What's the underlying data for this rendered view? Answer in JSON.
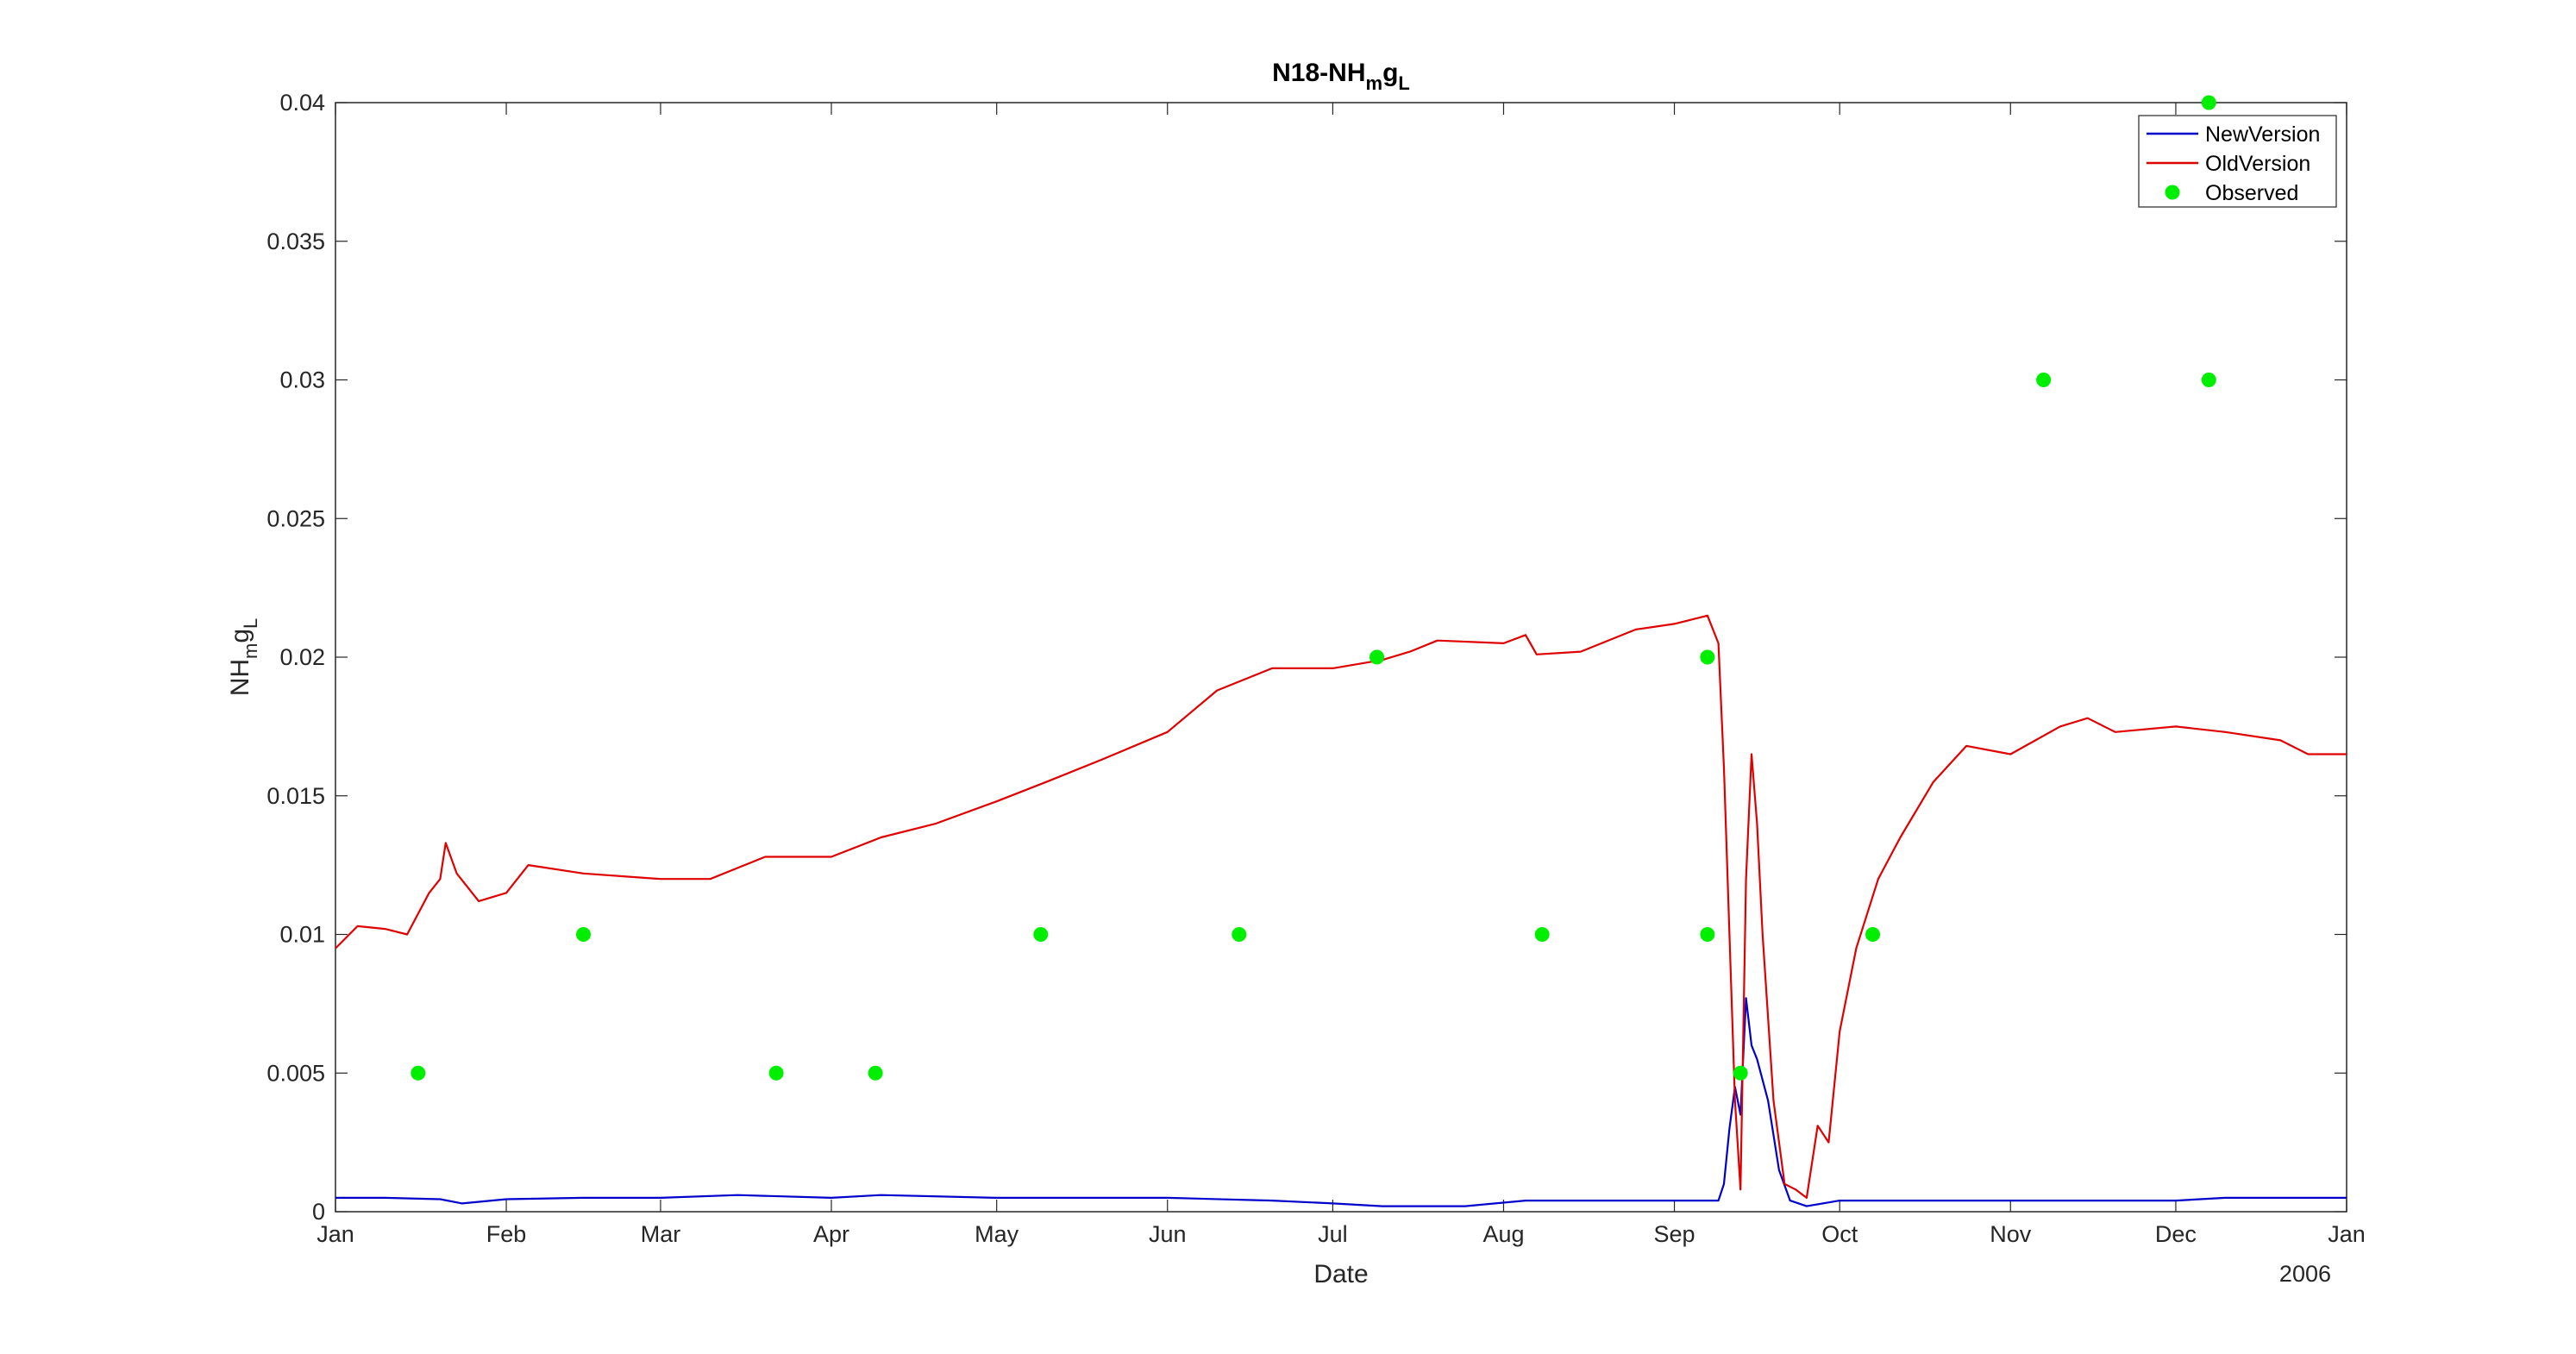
{
  "chart_data": {
    "type": "line",
    "title": "N18-NH",
    "title_sub": "m",
    "title_mid": "g",
    "title_sub2": "L",
    "xlabel": "Date",
    "ylabel": "NH",
    "ylabel_sub": "m",
    "ylabel_mid": "g",
    "ylabel_sub2": "L",
    "x_year_label": "2006",
    "xlim": [
      "2006-01-01",
      "2007-01-01"
    ],
    "ylim": [
      0,
      0.04
    ],
    "x_ticks": [
      {
        "date": "2006-01-01",
        "label": "Jan"
      },
      {
        "date": "2006-02-01",
        "label": "Feb"
      },
      {
        "date": "2006-03-01",
        "label": "Mar"
      },
      {
        "date": "2006-04-01",
        "label": "Apr"
      },
      {
        "date": "2006-05-01",
        "label": "May"
      },
      {
        "date": "2006-06-01",
        "label": "Jun"
      },
      {
        "date": "2006-07-01",
        "label": "Jul"
      },
      {
        "date": "2006-08-01",
        "label": "Aug"
      },
      {
        "date": "2006-09-01",
        "label": "Sep"
      },
      {
        "date": "2006-10-01",
        "label": "Oct"
      },
      {
        "date": "2006-11-01",
        "label": "Nov"
      },
      {
        "date": "2006-12-01",
        "label": "Dec"
      },
      {
        "date": "2007-01-01",
        "label": "Jan"
      }
    ],
    "y_ticks": [
      {
        "value": 0,
        "label": "0"
      },
      {
        "value": 0.005,
        "label": "0.005"
      },
      {
        "value": 0.01,
        "label": "0.01"
      },
      {
        "value": 0.015,
        "label": "0.015"
      },
      {
        "value": 0.02,
        "label": "0.02"
      },
      {
        "value": 0.025,
        "label": "0.025"
      },
      {
        "value": 0.03,
        "label": "0.03"
      },
      {
        "value": 0.035,
        "label": "0.035"
      },
      {
        "value": 0.04,
        "label": "0.04"
      }
    ],
    "grid": false,
    "legend_position": "top-right",
    "series": [
      {
        "name": "NewVersion",
        "color": "#0000cc",
        "kind": "line",
        "points": [
          [
            "2006-01-01",
            0.0005
          ],
          [
            "2006-01-10",
            0.0005
          ],
          [
            "2006-01-20",
            0.00045
          ],
          [
            "2006-01-24",
            0.0003
          ],
          [
            "2006-02-01",
            0.00045
          ],
          [
            "2006-02-15",
            0.0005
          ],
          [
            "2006-03-01",
            0.0005
          ],
          [
            "2006-03-15",
            0.0006
          ],
          [
            "2006-04-01",
            0.0005
          ],
          [
            "2006-04-10",
            0.0006
          ],
          [
            "2006-05-01",
            0.0005
          ],
          [
            "2006-06-01",
            0.0005
          ],
          [
            "2006-06-20",
            0.0004
          ],
          [
            "2006-07-01",
            0.0003
          ],
          [
            "2006-07-10",
            0.0002
          ],
          [
            "2006-07-25",
            0.0002
          ],
          [
            "2006-08-05",
            0.0004
          ],
          [
            "2006-08-20",
            0.0004
          ],
          [
            "2006-09-01",
            0.0004
          ],
          [
            "2006-09-09",
            0.0004
          ],
          [
            "2006-09-10",
            0.001
          ],
          [
            "2006-09-11",
            0.003
          ],
          [
            "2006-09-12",
            0.0045
          ],
          [
            "2006-09-13",
            0.0035
          ],
          [
            "2006-09-14",
            0.0077
          ],
          [
            "2006-09-15",
            0.006
          ],
          [
            "2006-09-16",
            0.0055
          ],
          [
            "2006-09-18",
            0.004
          ],
          [
            "2006-09-20",
            0.0015
          ],
          [
            "2006-09-22",
            0.0004
          ],
          [
            "2006-09-25",
            0.0002
          ],
          [
            "2006-10-01",
            0.0004
          ],
          [
            "2006-10-15",
            0.0004
          ],
          [
            "2006-11-01",
            0.0004
          ],
          [
            "2006-11-15",
            0.0004
          ],
          [
            "2006-12-01",
            0.0004
          ],
          [
            "2006-12-10",
            0.0005
          ],
          [
            "2006-12-20",
            0.0005
          ],
          [
            "2007-01-01",
            0.0005
          ]
        ]
      },
      {
        "name": "OldVersion",
        "color": "#e00000",
        "kind": "line",
        "points": [
          [
            "2006-01-01",
            0.0095
          ],
          [
            "2006-01-05",
            0.0103
          ],
          [
            "2006-01-10",
            0.0102
          ],
          [
            "2006-01-14",
            0.01
          ],
          [
            "2006-01-18",
            0.0115
          ],
          [
            "2006-01-20",
            0.012
          ],
          [
            "2006-01-21",
            0.0133
          ],
          [
            "2006-01-23",
            0.0122
          ],
          [
            "2006-01-27",
            0.0112
          ],
          [
            "2006-02-01",
            0.0115
          ],
          [
            "2006-02-05",
            0.0125
          ],
          [
            "2006-02-15",
            0.0122
          ],
          [
            "2006-03-01",
            0.012
          ],
          [
            "2006-03-10",
            0.012
          ],
          [
            "2006-03-20",
            0.0128
          ],
          [
            "2006-04-01",
            0.0128
          ],
          [
            "2006-04-10",
            0.0135
          ],
          [
            "2006-04-20",
            0.014
          ],
          [
            "2006-05-01",
            0.0148
          ],
          [
            "2006-05-10",
            0.0155
          ],
          [
            "2006-05-20",
            0.0163
          ],
          [
            "2006-06-01",
            0.0173
          ],
          [
            "2006-06-10",
            0.0188
          ],
          [
            "2006-06-20",
            0.0196
          ],
          [
            "2006-07-01",
            0.0196
          ],
          [
            "2006-07-10",
            0.0199
          ],
          [
            "2006-07-15",
            0.0202
          ],
          [
            "2006-07-20",
            0.0206
          ],
          [
            "2006-08-01",
            0.0205
          ],
          [
            "2006-08-05",
            0.0208
          ],
          [
            "2006-08-07",
            0.0201
          ],
          [
            "2006-08-15",
            0.0202
          ],
          [
            "2006-08-25",
            0.021
          ],
          [
            "2006-09-01",
            0.0212
          ],
          [
            "2006-09-07",
            0.0215
          ],
          [
            "2006-09-09",
            0.0205
          ],
          [
            "2006-09-10",
            0.016
          ],
          [
            "2006-09-11",
            0.01
          ],
          [
            "2006-09-12",
            0.004
          ],
          [
            "2006-09-13",
            0.0008
          ],
          [
            "2006-09-14",
            0.012
          ],
          [
            "2006-09-15",
            0.0165
          ],
          [
            "2006-09-16",
            0.014
          ],
          [
            "2006-09-17",
            0.01
          ],
          [
            "2006-09-19",
            0.004
          ],
          [
            "2006-09-21",
            0.001
          ],
          [
            "2006-09-23",
            0.0008
          ],
          [
            "2006-09-25",
            0.0005
          ],
          [
            "2006-09-27",
            0.0031
          ],
          [
            "2006-09-29",
            0.0025
          ],
          [
            "2006-10-01",
            0.0065
          ],
          [
            "2006-10-04",
            0.0095
          ],
          [
            "2006-10-08",
            0.012
          ],
          [
            "2006-10-12",
            0.0135
          ],
          [
            "2006-10-18",
            0.0155
          ],
          [
            "2006-10-24",
            0.0168
          ],
          [
            "2006-11-01",
            0.0165
          ],
          [
            "2006-11-10",
            0.0175
          ],
          [
            "2006-11-15",
            0.0178
          ],
          [
            "2006-11-20",
            0.0173
          ],
          [
            "2006-12-01",
            0.0175
          ],
          [
            "2006-12-10",
            0.0173
          ],
          [
            "2006-12-20",
            0.017
          ],
          [
            "2006-12-25",
            0.0165
          ],
          [
            "2007-01-01",
            0.0165
          ]
        ]
      },
      {
        "name": "Observed",
        "color": "#00ee00",
        "kind": "scatter",
        "points": [
          [
            "2006-01-16",
            0.005
          ],
          [
            "2006-02-15",
            0.01
          ],
          [
            "2006-03-22",
            0.005
          ],
          [
            "2006-04-09",
            0.005
          ],
          [
            "2006-05-09",
            0.01
          ],
          [
            "2006-06-14",
            0.01
          ],
          [
            "2006-07-09",
            0.02
          ],
          [
            "2006-08-08",
            0.01
          ],
          [
            "2006-09-07",
            0.02
          ],
          [
            "2006-09-07",
            0.01
          ],
          [
            "2006-09-13",
            0.005
          ],
          [
            "2006-10-07",
            0.01
          ],
          [
            "2006-11-07",
            0.03
          ],
          [
            "2006-12-07",
            0.03
          ],
          [
            "2006-12-07",
            0.04
          ]
        ]
      }
    ]
  }
}
